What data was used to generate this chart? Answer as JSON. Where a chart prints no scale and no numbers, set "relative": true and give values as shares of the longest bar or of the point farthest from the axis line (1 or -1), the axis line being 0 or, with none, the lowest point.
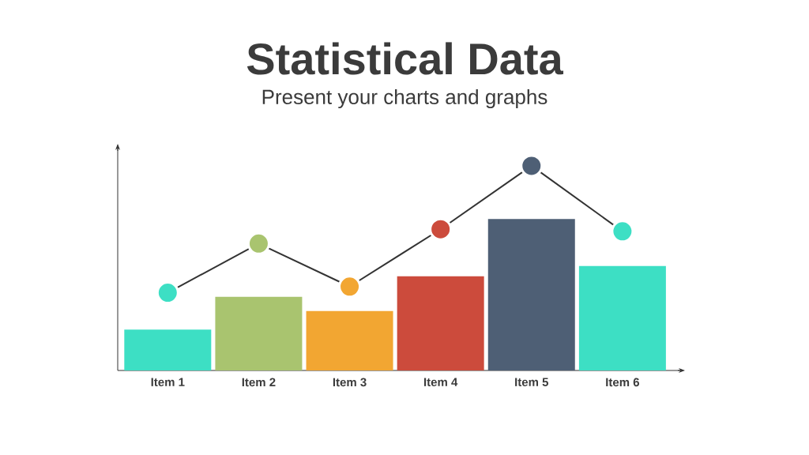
{
  "chart_data": {
    "type": "bar",
    "title": "Statistical Data",
    "subtitle": "Present your charts and graphs",
    "relative": true,
    "marker": "circle",
    "categories": [
      "Item 1",
      "Item 2",
      "Item 3",
      "Item 4",
      "Item 5",
      "Item 6"
    ],
    "series": [
      {
        "colors": [
          "#3ddfc4",
          "#a9c46f",
          "#f2a632",
          "#cc4b3c",
          "#4e5f75",
          "#3ddfc4"
        ],
        "values": [
          0.2,
          0.36,
          0.29,
          0.46,
          0.74,
          0.51
        ]
      },
      {
        "type": "line",
        "color": "#333333",
        "colors": [
          "#3ddfc4",
          "#a9c46f",
          "#f2a632",
          "#cc4b3c",
          "#4e5f75",
          "#3ddfc4"
        ],
        "values": [
          0.38,
          0.62,
          0.41,
          0.69,
          1,
          0.68
        ]
      }
    ]
  }
}
